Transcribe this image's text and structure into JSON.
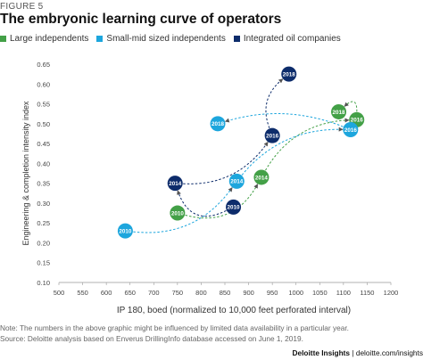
{
  "figure_label": "FIGURE 5",
  "note": "Note: The numbers in the above graphic might be influenced by limited data availability in a particular year.",
  "source": "Source: Deloitte analysis based on Enverus DrillingInfo database accessed on June 1, 2019.",
  "footer": {
    "brand": "Deloitte Insights",
    "separator": " | ",
    "url": "deloitte.com/insights"
  },
  "chart_data": {
    "type": "scatter",
    "title": "The embryonic learning curve of operators",
    "xlabel": "IP 180, boed (normalized to 10,000 feet perforated interval)",
    "ylabel": "Engineering & completion intensity index",
    "xlim": [
      500,
      1200
    ],
    "ylim": [
      0.1,
      0.65
    ],
    "x_ticks": [
      "500",
      "550",
      "600",
      "650",
      "700",
      "750",
      "800",
      "850",
      "900",
      "950",
      "1000",
      "1050",
      "1100",
      "1150",
      "1200"
    ],
    "y_ticks": [
      "0.10",
      "0.15",
      "0.20",
      "0.25",
      "0.30",
      "0.35",
      "0.40",
      "0.45",
      "0.50",
      "0.55",
      "0.60",
      "0.65"
    ],
    "grid": false,
    "legend_position": "top-left",
    "series": [
      {
        "name": "Large independents",
        "color": "#43a047",
        "points": [
          {
            "label": "2010",
            "x": 750,
            "y": 0.275
          },
          {
            "label": "2014",
            "x": 927,
            "y": 0.365
          },
          {
            "label": "2016",
            "x": 1128,
            "y": 0.51
          },
          {
            "label": "2018",
            "x": 1090,
            "y": 0.53
          }
        ]
      },
      {
        "name": "Small-mid sized independents",
        "color": "#1da6dd",
        "points": [
          {
            "label": "2010",
            "x": 640,
            "y": 0.23
          },
          {
            "label": "2014",
            "x": 875,
            "y": 0.355
          },
          {
            "label": "2016",
            "x": 1115,
            "y": 0.485
          },
          {
            "label": "2018",
            "x": 835,
            "y": 0.5
          }
        ]
      },
      {
        "name": "Integrated oil companies",
        "color": "#0d2c6b",
        "points": [
          {
            "label": "2010",
            "x": 868,
            "y": 0.29
          },
          {
            "label": "2014",
            "x": 745,
            "y": 0.35
          },
          {
            "label": "2016",
            "x": 950,
            "y": 0.47
          },
          {
            "label": "2018",
            "x": 985,
            "y": 0.625
          }
        ]
      }
    ]
  }
}
